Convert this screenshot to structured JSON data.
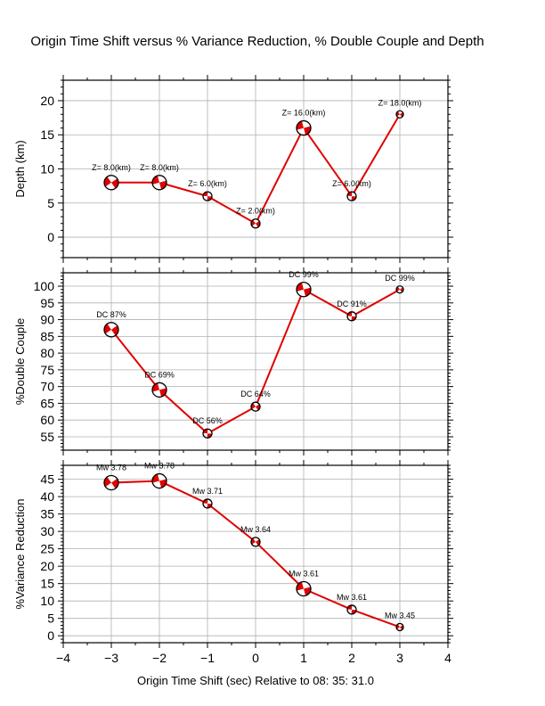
{
  "chart_data": [
    {
      "type": "line",
      "title": "Origin Time Shift versus % Variance Reduction, % Double Couple and Depth",
      "ylabel": "Depth (km)",
      "xlabel": "",
      "xlim": [
        -4,
        4
      ],
      "ylim": [
        -3,
        23
      ],
      "xticks": [
        -4,
        -3,
        -2,
        -1,
        0,
        1,
        2,
        3,
        4
      ],
      "yticks": [
        0,
        5,
        10,
        15,
        20
      ],
      "x": [
        -3,
        -2,
        -1,
        0,
        1,
        2,
        3
      ],
      "values": [
        8,
        8,
        6,
        2,
        16,
        6,
        18
      ],
      "labels": [
        "Z= 8.0(km)",
        "Z= 8.0(km)",
        "Z= 6.0(km)",
        "Z= 2.0(km)",
        "Z= 16.0(km)",
        "Z= 6.0(km)",
        "Z= 18.0(km)"
      ],
      "marker_size": [
        8,
        8,
        5,
        5,
        8,
        5,
        4
      ],
      "grid": true,
      "line_color": "#e00000"
    },
    {
      "type": "line",
      "ylabel": "%Double Couple",
      "xlabel": "",
      "xlim": [
        -4,
        4
      ],
      "ylim": [
        51,
        104
      ],
      "xticks": [
        -4,
        -3,
        -2,
        -1,
        0,
        1,
        2,
        3,
        4
      ],
      "yticks": [
        55,
        60,
        65,
        70,
        75,
        80,
        85,
        90,
        95,
        100
      ],
      "x": [
        -3,
        -2,
        -1,
        0,
        1,
        2,
        3
      ],
      "values": [
        87,
        69,
        56,
        64,
        99,
        91,
        99
      ],
      "labels": [
        "DC 87%",
        "DC 69%",
        "DC 56%",
        "DC 64%",
        "DC 99%",
        "DC 91%",
        "DC 99%"
      ],
      "marker_size": [
        8,
        8,
        5,
        5,
        8,
        5,
        4
      ],
      "grid": true,
      "line_color": "#e00000"
    },
    {
      "type": "line",
      "ylabel": "%Variance Reduction",
      "xlabel": "Origin Time Shift (sec) Relative to 08: 35: 31.0",
      "xlim": [
        -4,
        4
      ],
      "ylim": [
        -2,
        49
      ],
      "xticks": [
        -4,
        -3,
        -2,
        -1,
        0,
        1,
        2,
        3,
        4
      ],
      "xticklabels": [
        "−4",
        "−3",
        "−2",
        "−1",
        "0",
        "1",
        "2",
        "3",
        "4"
      ],
      "yticks": [
        0,
        5,
        10,
        15,
        20,
        25,
        30,
        35,
        40,
        45
      ],
      "x": [
        -3,
        -2,
        -1,
        0,
        1,
        2,
        3
      ],
      "values": [
        44,
        44.5,
        38,
        27,
        13.5,
        7.5,
        2.5
      ],
      "labels": [
        "Mw 3.78",
        "Mw 3.78",
        "Mw 3.71",
        "Mw 3.64",
        "Mw 3.61",
        "Mw 3.61",
        "Mw 3.45"
      ],
      "marker_size": [
        8,
        8,
        5,
        5,
        8,
        5,
        4
      ],
      "grid": true,
      "line_color": "#e00000"
    }
  ]
}
